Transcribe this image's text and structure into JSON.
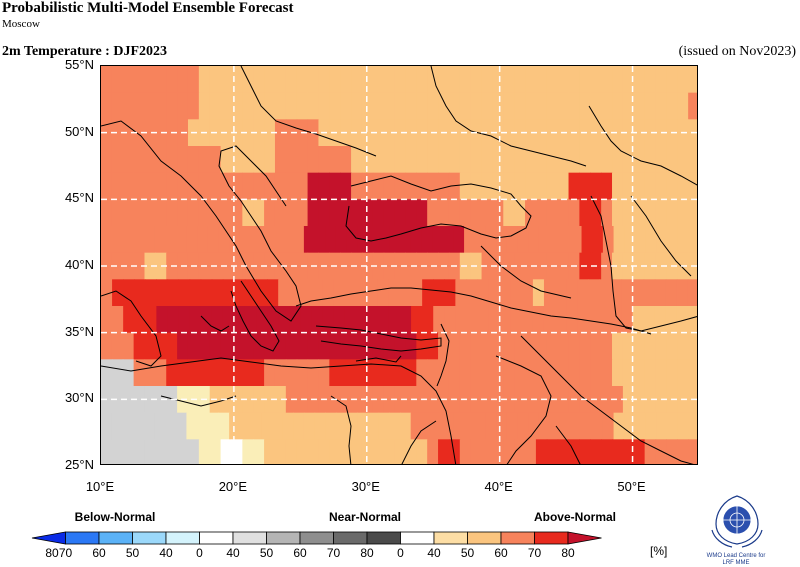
{
  "header": {
    "title": "Probabilistic Multi-Model Ensemble Forecast",
    "subtitle": "Moscow",
    "variable": "2m Temperature : DJF2023",
    "issued": "(issued on Nov2023)"
  },
  "map": {
    "lon_range": [
      10,
      55
    ],
    "lat_range": [
      25,
      55
    ],
    "lat_ticks": [
      "55°N",
      "50°N",
      "45°N",
      "40°N",
      "35°N",
      "30°N",
      "25°N"
    ],
    "lon_ticks": [
      "10°E",
      "20°E",
      "30°E",
      "40°E",
      "50°E"
    ],
    "grid_lines": true,
    "cell_size_deg": 2.5,
    "palette": {
      "A": "#FDDEA5",
      "B": "#FBC57F",
      "C": "#F7835C",
      "D": "#E82A1E",
      "E": "#C4122B",
      "N": "#D3D3D3",
      "W": "#FFFFFF",
      "Y": "#FAEEB8"
    },
    "rows": [
      "CCCCCCCCCBBBBBBBBBBBBBBBBBBBBBBBBBBBBBBBBBBBBBBBBBBBBBB",
      "CCCCCCCCCBBBBBBBBBBBBBBBBBBBBBBBBBBBBBBBBBBBBBBBBBBBBBC",
      "CCCCCCCCBBBBBBBBCCCCBBBBBBBBBBBBBBBBBBBBBBBBBBBBBBBBBBB",
      "CCCCCCCCCCCBBBBBCCCCCCCBBBBBBBBBBBBBBBBBBBBBBBBBBBBBBBB",
      "CCCCCCCCCCCCCCCCCCCEEEECCCCCCCCCCBBBBBBBBBBDDDDBBBBBBBB",
      "CCCCCCCCCCCCCBBCCCCEEEEEEEEEEECCCCCCCBBCCCCCDDCBBBBBBBB",
      "CCCCCCCCCCCCCCCCCCCEEEEEEEEEEEEEEECCCCCCCCCCCDDCBBBBBBBB",
      "CCCCBBCCCCCCCCCCCCCCCCCCCCCCCCCCCBBCCCCCCCCCDDCBBBBBBBB",
      "CDDDDDDDDDDDDDDDCCCCCCCCCCCCCDDDCCCCCCCBCCCCCCCCCCCCCC",
      "CCDDDEEEEEEEEEEEEEEEEEEEEEEEDDCCCCCCCCCCCCCCCCCCBBBBBB",
      "CCCDDDDEEEEEEEEEEEEEEEEEEEEEEDDCCCCCCCCCCCCCCCCBBBBBBBB",
      "NNNCCCDDDDDDDDDCCCCCCDDDDDDDDCCCCCCCCCCCCCCCCCCBBBBBBBB",
      "NNNNNNNYYYBBBBBBBCCCCCCCCCCCCCCCCCCCCCCCCCCCCCCCBBBBBBB",
      "NNNNNNNNYYYYBBBBBBBBBBBBBBBBBCCCCCCCCCCCCCCCCCCCBBBBBBBB",
      "NNNNNNNNNYYWWYYBBBBBBBBBBBBBBBCDDCCCCCCCDDDDDDDDDDCCCCC"
    ],
    "place_labels": []
  },
  "legend": {
    "categories": [
      "Below-Normal",
      "Near-Normal",
      "Above-Normal"
    ],
    "unit": "[%]",
    "labels": [
      "80",
      "70",
      "60",
      "50",
      "40",
      "0",
      "40",
      "50",
      "60",
      "70",
      "80",
      "0",
      "40",
      "50",
      "60",
      "70",
      "80"
    ],
    "below_colors": [
      "#0A2BE6",
      "#2B78F5",
      "#5BB2F7",
      "#9BD8FA",
      "#D4F3FC"
    ],
    "near_colors": [
      "#E0E0E0",
      "#B5B5B5",
      "#8E8E8E",
      "#6A6A6A",
      "#4A4A4A"
    ],
    "above_colors": [
      "#FDDEA5",
      "#FBC57F",
      "#F7835C",
      "#E82A1E",
      "#C4122B"
    ]
  },
  "logo": {
    "caption_line1": "WMO Lead Centre for",
    "caption_line2": "LRF MME"
  }
}
